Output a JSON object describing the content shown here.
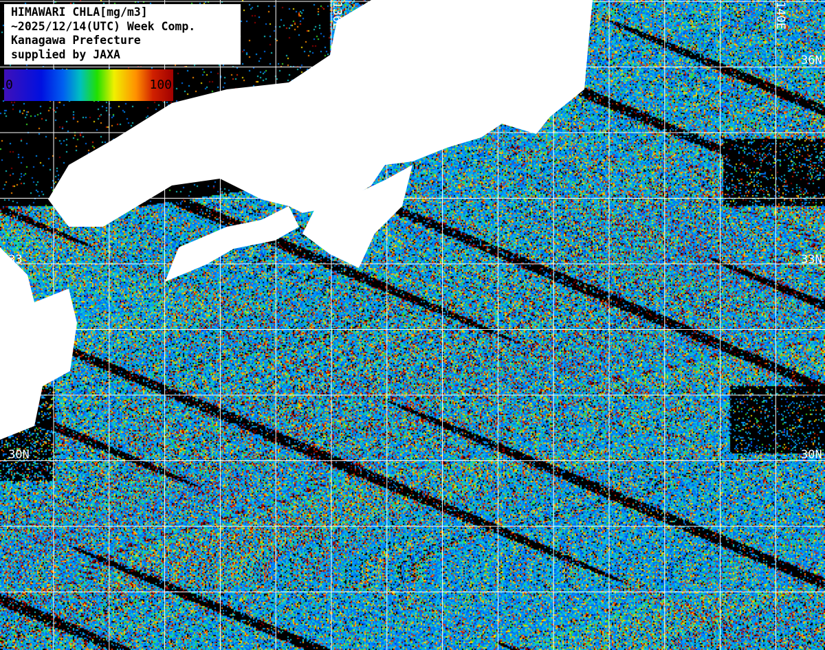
{
  "legend": {
    "lines": [
      "HIMAWARI CHLA[mg/m3]",
      "~2025/12/14(UTC) Week Comp.",
      "Kanagawa Prefecture",
      "supplied by JAXA"
    ]
  },
  "colorbar": {
    "min": "0",
    "max": "100",
    "colors": [
      "#4010b8",
      "#0010e0",
      "#0060f0",
      "#00c0c0",
      "#20e000",
      "#f0f000",
      "#ff9000",
      "#d02000",
      "#a00000"
    ]
  },
  "grid_labels": {
    "lon": [
      "136E",
      "140E"
    ],
    "lat_right": [
      "36N",
      "33N",
      "30N"
    ],
    "lat_left": [
      "33",
      "30N"
    ]
  },
  "colors": {
    "land": "#ffffff",
    "no_data": "#000000",
    "grid": "#ffffff"
  }
}
